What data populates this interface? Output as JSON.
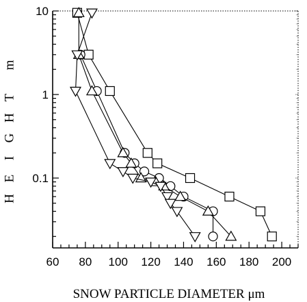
{
  "chart_data": {
    "type": "scatter",
    "title": "",
    "xlabel": "SNOW PARTICLE DIAMETER",
    "xunit": "μm",
    "ylabel": "H E I G H T",
    "yunit": "m",
    "xlim": [
      60,
      210
    ],
    "ylim": [
      0.015,
      10
    ],
    "yscale": "log",
    "grid": false,
    "x_ticks": [
      60,
      80,
      100,
      120,
      140,
      160,
      180,
      200
    ],
    "y_ticks": [
      {
        "value": 10,
        "label": "10"
      },
      {
        "value": 1,
        "label": "1"
      },
      {
        "value": 0.1,
        "label": "0.1"
      }
    ],
    "series": [
      {
        "marker": "square",
        "points": [
          [
            75,
            9.5
          ],
          [
            82,
            3.0
          ],
          [
            95,
            1.1
          ],
          [
            118,
            0.2
          ],
          [
            124,
            0.15
          ],
          [
            144,
            0.1
          ],
          [
            168,
            0.06
          ],
          [
            187,
            0.04
          ],
          [
            194,
            0.02
          ]
        ]
      },
      {
        "marker": "circle",
        "points": [
          [
            77,
            3.0
          ],
          [
            87,
            1.1
          ],
          [
            104,
            0.2
          ],
          [
            110,
            0.15
          ],
          [
            116,
            0.12
          ],
          [
            125,
            0.1
          ],
          [
            132,
            0.08
          ],
          [
            140,
            0.06
          ],
          [
            158,
            0.04
          ],
          [
            158,
            0.02
          ]
        ]
      },
      {
        "marker": "triangle-up",
        "points": [
          [
            76,
            9.5
          ],
          [
            76,
            3.0
          ],
          [
            84,
            1.1
          ],
          [
            103,
            0.2
          ],
          [
            108,
            0.15
          ],
          [
            114,
            0.1
          ],
          [
            123,
            0.09
          ],
          [
            128,
            0.08
          ],
          [
            138,
            0.06
          ],
          [
            155,
            0.04
          ],
          [
            169,
            0.02
          ]
        ]
      },
      {
        "marker": "triangle-down",
        "points": [
          [
            84,
            9.5
          ],
          [
            75,
            3.0
          ],
          [
            74,
            1.1
          ],
          [
            95,
            0.15
          ],
          [
            103,
            0.12
          ],
          [
            109,
            0.1
          ],
          [
            120,
            0.09
          ],
          [
            126,
            0.08
          ],
          [
            130,
            0.06
          ],
          [
            132,
            0.05
          ],
          [
            136,
            0.04
          ],
          [
            147,
            0.02
          ]
        ]
      }
    ]
  }
}
